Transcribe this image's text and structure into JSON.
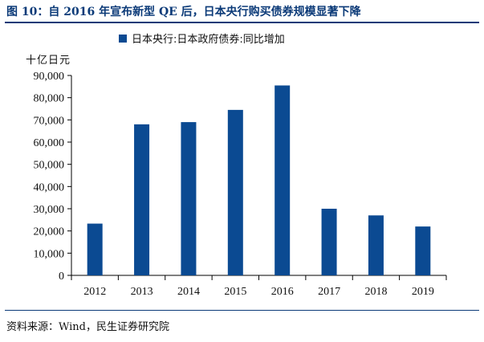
{
  "figure": {
    "title": "图 10：自 2016 年宣布新型 QE 后，日本央行购买债券规模显著下降",
    "source": "资料来源：Wind，民生证券研究院"
  },
  "colors": {
    "bar": "#0b4a92",
    "title": "#0b3a78",
    "axis": "#000000"
  },
  "chart_data": {
    "type": "bar",
    "unit_label": "十亿日元",
    "categories": [
      "2012",
      "2013",
      "2014",
      "2015",
      "2016",
      "2017",
      "2018",
      "2019"
    ],
    "series": [
      {
        "name": "日本央行:日本政府债券:同比增加",
        "values": [
          23300,
          68000,
          69000,
          74500,
          85500,
          30000,
          27000,
          22000
        ]
      }
    ],
    "ylim": [
      0,
      90000
    ],
    "yticks": [
      0,
      10000,
      20000,
      30000,
      40000,
      50000,
      60000,
      70000,
      80000,
      90000
    ],
    "ytick_labels": [
      "0",
      "10,000",
      "20,000",
      "30,000",
      "40,000",
      "50,000",
      "60,000",
      "70,000",
      "80,000",
      "90,000"
    ],
    "grid": false,
    "legend_position": "top"
  }
}
